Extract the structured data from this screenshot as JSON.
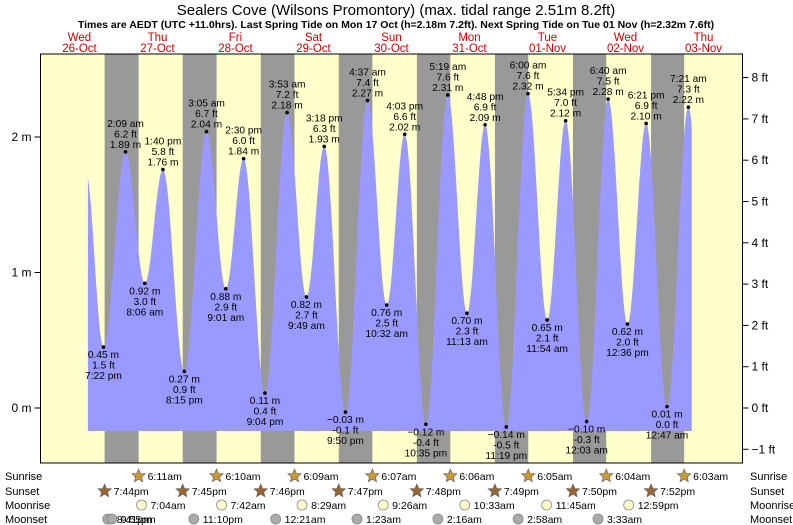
{
  "chart_data": {
    "type": "area",
    "title": "Sealers Cove (Wilsons Promontory) (max. tidal range 2.51m 8.2ft)",
    "subtitle": "Times are AEDT (UTC +11.0hrs). Last Spring Tide on Mon 17 Oct (h=2.18m 7.2ft). Next Spring Tide on Tue 01 Nov (h=2.32m 7.6ft)",
    "ylabel_left": "m",
    "ylabel_right": "ft",
    "ylim_m": [
      -0.35,
      2.5
    ],
    "yticks_m": [
      {
        "value": 0,
        "label": "0 m"
      },
      {
        "value": 1,
        "label": "1 m"
      },
      {
        "value": 2,
        "label": "2 m"
      }
    ],
    "yticks_ft": [
      -1,
      0,
      1,
      2,
      3,
      4,
      5,
      6,
      7,
      8
    ],
    "ytick_ft_suffix": " ft",
    "day_start_hour": 0,
    "days": [
      {
        "dow": "Wed",
        "date": "26-Oct"
      },
      {
        "dow": "Thu",
        "date": "27-Oct"
      },
      {
        "dow": "Fri",
        "date": "28-Oct"
      },
      {
        "dow": "Sat",
        "date": "29-Oct"
      },
      {
        "dow": "Sun",
        "date": "30-Oct"
      },
      {
        "dow": "Mon",
        "date": "31-Oct"
      },
      {
        "dow": "Tue",
        "date": "01-Nov"
      },
      {
        "dow": "Wed",
        "date": "02-Nov"
      },
      {
        "dow": "Thu",
        "date": "03-Nov"
      }
    ],
    "tides": [
      {
        "day": 0,
        "time": "7:22 pm",
        "h": 19.37,
        "m": 0.45,
        "ft": "1.5 ft",
        "m_label": "0.45 m",
        "type": "low"
      },
      {
        "day": 1,
        "time": "2:09 am",
        "h": 26.15,
        "m": 1.89,
        "ft": "6.2 ft",
        "m_label": "1.89 m",
        "type": "high"
      },
      {
        "day": 1,
        "time": "8:06 am",
        "h": 32.1,
        "m": 0.92,
        "ft": "3.0 ft",
        "m_label": "0.92 m",
        "type": "low"
      },
      {
        "day": 1,
        "time": "1:40 pm",
        "h": 37.67,
        "m": 1.76,
        "ft": "5.8 ft",
        "m_label": "1.76 m",
        "type": "high"
      },
      {
        "day": 1,
        "time": "8:15 pm",
        "h": 44.25,
        "m": 0.27,
        "ft": "0.9 ft",
        "m_label": "0.27 m",
        "type": "low"
      },
      {
        "day": 2,
        "time": "3:05 am",
        "h": 51.08,
        "m": 2.04,
        "ft": "6.7 ft",
        "m_label": "2.04 m",
        "type": "high"
      },
      {
        "day": 2,
        "time": "9:01 am",
        "h": 57.02,
        "m": 0.88,
        "ft": "2.9 ft",
        "m_label": "0.88 m",
        "type": "low"
      },
      {
        "day": 2,
        "time": "2:30 pm",
        "h": 62.5,
        "m": 1.84,
        "ft": "6.0 ft",
        "m_label": "1.84 m",
        "type": "high"
      },
      {
        "day": 2,
        "time": "9:04 pm",
        "h": 69.07,
        "m": 0.11,
        "ft": "0.4 ft",
        "m_label": "0.11 m",
        "type": "low"
      },
      {
        "day": 3,
        "time": "3:53 am",
        "h": 75.88,
        "m": 2.18,
        "ft": "7.2 ft",
        "m_label": "2.18 m",
        "type": "high"
      },
      {
        "day": 3,
        "time": "9:49 am",
        "h": 81.82,
        "m": 0.82,
        "ft": "2.7 ft",
        "m_label": "0.82 m",
        "type": "low"
      },
      {
        "day": 3,
        "time": "3:18 pm",
        "h": 87.3,
        "m": 1.93,
        "ft": "6.3 ft",
        "m_label": "1.93 m",
        "type": "high"
      },
      {
        "day": 3,
        "time": "9:50 pm",
        "h": 93.83,
        "m": -0.03,
        "ft": "-0.1 ft",
        "m_label": "−0.03 m",
        "type": "low"
      },
      {
        "day": 4,
        "time": "4:37 am",
        "h": 100.62,
        "m": 2.27,
        "ft": "7.4 ft",
        "m_label": "2.27 m",
        "type": "high"
      },
      {
        "day": 4,
        "time": "10:32 am",
        "h": 106.53,
        "m": 0.76,
        "ft": "2.5 ft",
        "m_label": "0.76 m",
        "type": "low"
      },
      {
        "day": 4,
        "time": "4:03 pm",
        "h": 112.05,
        "m": 2.02,
        "ft": "6.6 ft",
        "m_label": "2.02 m",
        "type": "high"
      },
      {
        "day": 4,
        "time": "10:35 pm",
        "h": 118.58,
        "m": -0.12,
        "ft": "-0.4 ft",
        "m_label": "−0.12 m",
        "type": "low"
      },
      {
        "day": 5,
        "time": "5:19 am",
        "h": 125.32,
        "m": 2.31,
        "ft": "7.6 ft",
        "m_label": "2.31 m",
        "type": "high"
      },
      {
        "day": 5,
        "time": "11:13 am",
        "h": 131.22,
        "m": 0.7,
        "ft": "2.3 ft",
        "m_label": "0.70 m",
        "type": "low"
      },
      {
        "day": 5,
        "time": "4:48 pm",
        "h": 136.8,
        "m": 2.09,
        "ft": "6.9 ft",
        "m_label": "2.09 m",
        "type": "high"
      },
      {
        "day": 5,
        "time": "11:19 pm",
        "h": 143.32,
        "m": -0.14,
        "ft": "-0.5 ft",
        "m_label": "−0.14 m",
        "type": "low"
      },
      {
        "day": 6,
        "time": "6:00 am",
        "h": 150.0,
        "m": 2.32,
        "ft": "7.6 ft",
        "m_label": "2.32 m",
        "type": "high"
      },
      {
        "day": 6,
        "time": "11:54 am",
        "h": 155.9,
        "m": 0.65,
        "ft": "2.1 ft",
        "m_label": "0.65 m",
        "type": "low"
      },
      {
        "day": 6,
        "time": "5:34 pm",
        "h": 161.57,
        "m": 2.12,
        "ft": "7.0 ft",
        "m_label": "2.12 m",
        "type": "high"
      },
      {
        "day": 7,
        "time": "12:03 am",
        "h": 168.05,
        "m": -0.1,
        "ft": "-0.3 ft",
        "m_label": "−0.10 m",
        "type": "low"
      },
      {
        "day": 7,
        "time": "6:40 am",
        "h": 174.67,
        "m": 2.28,
        "ft": "7.5 ft",
        "m_label": "2.28 m",
        "type": "high"
      },
      {
        "day": 7,
        "time": "12:36 pm",
        "h": 180.6,
        "m": 0.62,
        "ft": "2.0 ft",
        "m_label": "0.62 m",
        "type": "low"
      },
      {
        "day": 7,
        "time": "6:21 pm",
        "h": 186.35,
        "m": 2.1,
        "ft": "6.9 ft",
        "m_label": "2.10 m",
        "type": "high"
      },
      {
        "day": 8,
        "time": "12:47 am",
        "h": 192.78,
        "m": 0.01,
        "ft": "0.0 ft",
        "m_label": "0.01 m",
        "type": "low"
      },
      {
        "day": 8,
        "time": "7:21 am",
        "h": 199.35,
        "m": 2.22,
        "ft": "7.3 ft",
        "m_label": "2.22 m",
        "type": "high"
      }
    ],
    "curve_start": {
      "h": 14.4,
      "m": 1.55
    },
    "curve_end_h": 200.5,
    "night": [
      {
        "start_h": 19.73,
        "end_h": 30.18
      },
      {
        "start_h": 43.75,
        "end_h": 54.17
      },
      {
        "start_h": 67.77,
        "end_h": 78.15
      },
      {
        "start_h": 91.78,
        "end_h": 102.12
      },
      {
        "start_h": 115.8,
        "end_h": 126.1
      },
      {
        "start_h": 139.82,
        "end_h": 150.08
      },
      {
        "start_h": 163.83,
        "end_h": 174.07
      },
      {
        "start_h": 187.87,
        "end_h": 198.05
      }
    ],
    "astro_labels": {
      "sunrise": "Sunrise",
      "sunset": "Sunset",
      "moonrise": "Moonrise",
      "moonset": "Moonset"
    },
    "sunrise": [
      {
        "day": 1,
        "time": "6:11am"
      },
      {
        "day": 2,
        "time": "6:10am"
      },
      {
        "day": 3,
        "time": "6:09am"
      },
      {
        "day": 4,
        "time": "6:07am"
      },
      {
        "day": 5,
        "time": "6:06am"
      },
      {
        "day": 6,
        "time": "6:05am"
      },
      {
        "day": 7,
        "time": "6:04am"
      },
      {
        "day": 8,
        "time": "6:03am"
      }
    ],
    "sunset": [
      {
        "day": 0,
        "time": "7:44pm"
      },
      {
        "day": 1,
        "time": "7:45pm"
      },
      {
        "day": 2,
        "time": "7:46pm"
      },
      {
        "day": 3,
        "time": "7:47pm"
      },
      {
        "day": 4,
        "time": "7:48pm"
      },
      {
        "day": 5,
        "time": "7:49pm"
      },
      {
        "day": 6,
        "time": "7:50pm"
      },
      {
        "day": 7,
        "time": "7:52pm"
      }
    ],
    "moonrise": [
      {
        "day": 1,
        "time": "7:04am"
      },
      {
        "day": 2,
        "time": "7:42am"
      },
      {
        "day": 3,
        "time": "8:29am"
      },
      {
        "day": 4,
        "time": "9:26am"
      },
      {
        "day": 5,
        "time": "10:33am"
      },
      {
        "day": 6,
        "time": "11:45am"
      },
      {
        "day": 7,
        "time": "12:59pm"
      }
    ],
    "moonset": [
      {
        "day": 0,
        "time": "8:41pm"
      },
      {
        "day": 0,
        "time": "9:55pm"
      },
      {
        "day": 1,
        "time": "11:10pm"
      },
      {
        "day": 3,
        "time": "12:21am"
      },
      {
        "day": 4,
        "time": "1:23am"
      },
      {
        "day": 5,
        "time": "2:16am"
      },
      {
        "day": 6,
        "time": "2:58am"
      },
      {
        "day": 7,
        "time": "3:33am"
      }
    ],
    "colors": {
      "day_bg": "#ffffcc",
      "night_bg": "#999999",
      "water": "#9999ff",
      "date_text": "#cc0000",
      "sun_marker": "#cc9933",
      "sunset_marker": "#996633",
      "moonrise_marker": "#ffffcc",
      "moonset_marker": "#aaaaaa"
    }
  }
}
